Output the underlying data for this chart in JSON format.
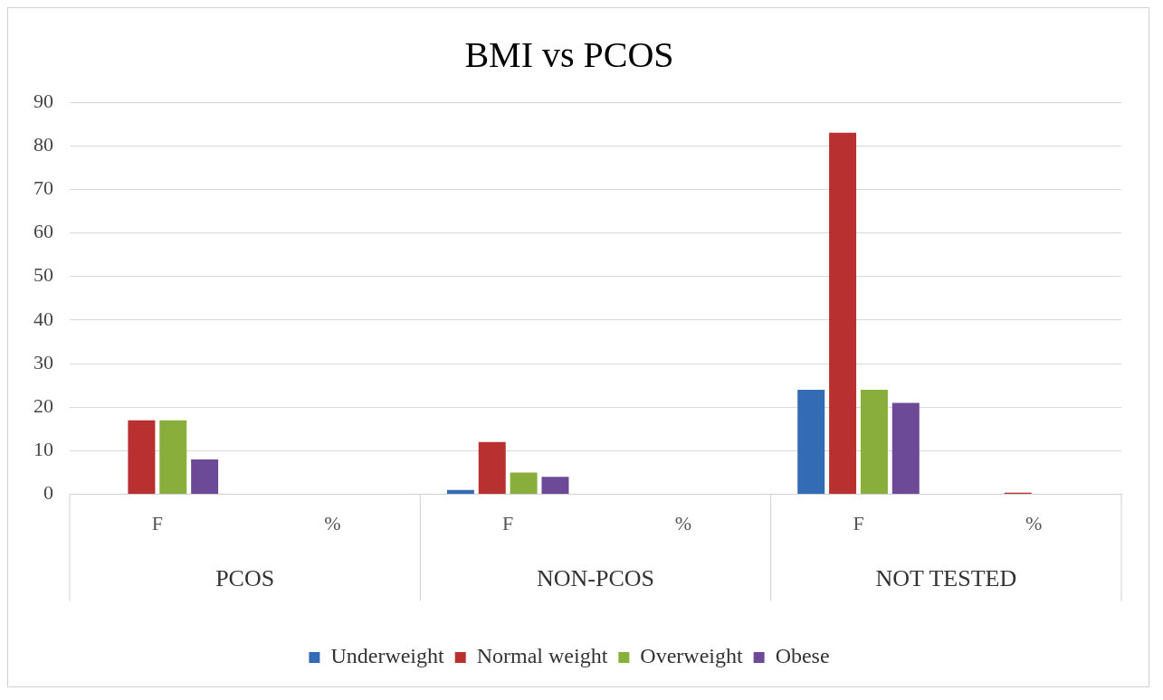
{
  "chart_data": {
    "type": "bar",
    "title": "BMI vs PCOS",
    "categories": [
      "F",
      "%",
      "F",
      "%",
      "F",
      "%"
    ],
    "annotations": [
      "PCOS",
      "NON-PCOS",
      "NOT TESTED"
    ],
    "series": [
      {
        "name": "Underweight",
        "color": "#336cb4",
        "values": [
          0,
          0,
          1,
          0,
          24,
          0
        ]
      },
      {
        "name": "Normal weight",
        "color": "#b8302f",
        "values": [
          17,
          0,
          12,
          0,
          83,
          0.4
        ]
      },
      {
        "name": "Overweight",
        "color": "#8aae3c",
        "values": [
          17,
          0,
          5,
          0,
          24,
          0
        ]
      },
      {
        "name": "Obese",
        "color": "#6c4a97",
        "values": [
          8,
          0,
          4,
          0,
          21,
          0
        ]
      }
    ],
    "ylim": [
      0,
      90
    ],
    "yticks": [
      0,
      10,
      20,
      30,
      40,
      50,
      60,
      70,
      80,
      90
    ],
    "grid": "y",
    "legend": "bottom"
  }
}
